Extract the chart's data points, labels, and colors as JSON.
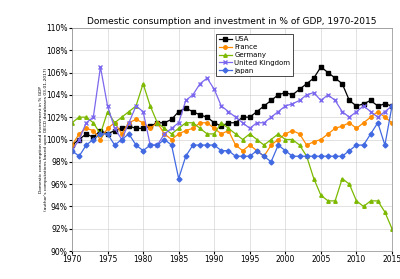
{
  "title": "Domestic consumption and investment in % of GDP, 1970-2015",
  "ylabel": "Domestic consumption and investment in % GDP\n(author's computations based upon OECD databases 03-01-2017)",
  "ylim": [
    90,
    110
  ],
  "yticks": [
    90,
    92,
    94,
    96,
    98,
    100,
    102,
    104,
    106,
    108,
    110
  ],
  "xlim": [
    1970,
    2015
  ],
  "xticks": [
    1970,
    1975,
    1980,
    1985,
    1990,
    1995,
    2000,
    2005,
    2010,
    2015
  ],
  "series": {
    "USA": {
      "color": "#000000",
      "marker": "s",
      "markersize": 2.5,
      "linewidth": 0.9,
      "data": {
        "1970": 99.5,
        "1971": 100.0,
        "1972": 100.5,
        "1973": 100.2,
        "1974": 100.8,
        "1975": 100.5,
        "1976": 100.8,
        "1977": 101.0,
        "1978": 101.2,
        "1979": 101.0,
        "1980": 101.0,
        "1981": 101.2,
        "1982": 101.5,
        "1983": 101.5,
        "1984": 101.8,
        "1985": 102.5,
        "1986": 102.8,
        "1987": 102.5,
        "1988": 102.2,
        "1989": 102.0,
        "1990": 101.5,
        "1991": 101.2,
        "1992": 101.5,
        "1993": 101.5,
        "1994": 102.0,
        "1995": 102.0,
        "1996": 102.5,
        "1997": 103.0,
        "1998": 103.5,
        "1999": 104.0,
        "2000": 104.2,
        "2001": 104.0,
        "2002": 104.5,
        "2003": 105.0,
        "2004": 105.5,
        "2005": 106.5,
        "2006": 106.0,
        "2007": 105.5,
        "2008": 105.0,
        "2009": 103.5,
        "2010": 103.0,
        "2011": 103.2,
        "2012": 103.5,
        "2013": 103.0,
        "2014": 103.2,
        "2015": 103.0
      }
    },
    "France": {
      "color": "#FF8C00",
      "marker": "o",
      "markersize": 2.5,
      "linewidth": 0.9,
      "data": {
        "1970": 99.5,
        "1971": 100.5,
        "1972": 101.0,
        "1973": 100.8,
        "1974": 100.0,
        "1975": 101.0,
        "1976": 101.5,
        "1977": 100.5,
        "1978": 101.5,
        "1979": 101.8,
        "1980": 101.5,
        "1981": 101.0,
        "1982": 101.5,
        "1983": 100.5,
        "1984": 100.0,
        "1985": 100.5,
        "1986": 100.8,
        "1987": 101.0,
        "1988": 101.5,
        "1989": 101.5,
        "1990": 101.0,
        "1991": 100.5,
        "1992": 100.8,
        "1993": 99.5,
        "1994": 99.0,
        "1995": 99.5,
        "1996": 99.0,
        "1997": 98.5,
        "1998": 99.5,
        "1999": 100.0,
        "2000": 100.5,
        "2001": 100.8,
        "2002": 100.5,
        "2003": 99.5,
        "2004": 99.8,
        "2005": 100.0,
        "2006": 100.5,
        "2007": 101.0,
        "2008": 101.2,
        "2009": 101.5,
        "2010": 101.0,
        "2011": 101.5,
        "2012": 102.0,
        "2013": 102.5,
        "2014": 102.0,
        "2015": 101.5
      }
    },
    "Germany": {
      "color": "#7CB900",
      "marker": "^",
      "markersize": 2.5,
      "linewidth": 0.9,
      "data": {
        "1970": 101.5,
        "1971": 102.0,
        "1972": 102.0,
        "1973": 101.5,
        "1974": 100.5,
        "1975": 102.5,
        "1976": 101.5,
        "1977": 102.0,
        "1978": 102.5,
        "1979": 103.0,
        "1980": 105.0,
        "1981": 103.0,
        "1982": 101.5,
        "1983": 101.0,
        "1984": 100.5,
        "1985": 101.0,
        "1986": 101.5,
        "1987": 101.5,
        "1988": 101.0,
        "1989": 100.5,
        "1990": 100.5,
        "1991": 101.5,
        "1992": 101.0,
        "1993": 100.5,
        "1994": 100.0,
        "1995": 100.5,
        "1996": 100.0,
        "1997": 99.5,
        "1998": 100.0,
        "1999": 100.5,
        "2000": 100.0,
        "2001": 100.0,
        "2002": 99.5,
        "2003": 98.5,
        "2004": 96.5,
        "2005": 95.0,
        "2006": 94.5,
        "2007": 94.5,
        "2008": 96.5,
        "2009": 96.0,
        "2010": 94.5,
        "2011": 94.0,
        "2012": 94.5,
        "2013": 94.5,
        "2014": 93.5,
        "2015": 92.0
      }
    },
    "United Kingdom": {
      "color": "#7B68EE",
      "marker": "x",
      "markersize": 3.0,
      "linewidth": 0.9,
      "data": {
        "1970": 99.0,
        "1971": 100.0,
        "1972": 101.5,
        "1973": 102.0,
        "1974": 106.5,
        "1975": 103.0,
        "1976": 101.0,
        "1977": 100.0,
        "1978": 101.5,
        "1979": 103.0,
        "1980": 102.5,
        "1981": 99.5,
        "1982": 99.5,
        "1983": 100.5,
        "1984": 101.0,
        "1985": 101.5,
        "1986": 103.5,
        "1987": 104.0,
        "1988": 105.0,
        "1989": 105.5,
        "1990": 104.5,
        "1991": 103.0,
        "1992": 102.5,
        "1993": 102.0,
        "1994": 101.5,
        "1995": 101.0,
        "1996": 101.5,
        "1997": 101.5,
        "1998": 102.0,
        "1999": 102.5,
        "2000": 103.0,
        "2001": 103.2,
        "2002": 103.5,
        "2003": 104.0,
        "2004": 104.2,
        "2005": 103.5,
        "2006": 104.0,
        "2007": 103.5,
        "2008": 102.5,
        "2009": 102.0,
        "2010": 102.5,
        "2011": 103.0,
        "2012": 102.5,
        "2013": 102.0,
        "2014": 102.5,
        "2015": 103.0
      }
    },
    "Japan": {
      "color": "#4169E1",
      "marker": "D",
      "markersize": 2.5,
      "linewidth": 0.9,
      "data": {
        "1970": 99.0,
        "1971": 98.5,
        "1972": 99.5,
        "1973": 100.0,
        "1974": 100.5,
        "1975": 100.5,
        "1976": 99.5,
        "1977": 100.0,
        "1978": 100.5,
        "1979": 99.5,
        "1980": 99.0,
        "1981": 99.5,
        "1982": 99.5,
        "1983": 100.0,
        "1984": 99.5,
        "1985": 96.5,
        "1986": 98.5,
        "1987": 99.5,
        "1988": 99.5,
        "1989": 99.5,
        "1990": 99.5,
        "1991": 99.0,
        "1992": 99.0,
        "1993": 98.5,
        "1994": 98.5,
        "1995": 98.5,
        "1996": 99.0,
        "1997": 98.5,
        "1998": 98.0,
        "1999": 99.5,
        "2000": 99.0,
        "2001": 98.5,
        "2002": 98.5,
        "2003": 98.5,
        "2004": 98.5,
        "2005": 98.5,
        "2006": 98.5,
        "2007": 98.5,
        "2008": 98.5,
        "2009": 99.0,
        "2010": 99.5,
        "2011": 99.5,
        "2012": 100.5,
        "2013": 101.5,
        "2014": 99.5,
        "2015": 103.0
      }
    }
  },
  "legend_entries": [
    "USA",
    "France",
    "Germany",
    "United Kingdom",
    "Japan"
  ],
  "background_color": "#ffffff",
  "grid_color": "#cccccc",
  "title_fontsize": 6.5,
  "tick_fontsize": 5.5,
  "ylabel_fontsize": 3.2
}
